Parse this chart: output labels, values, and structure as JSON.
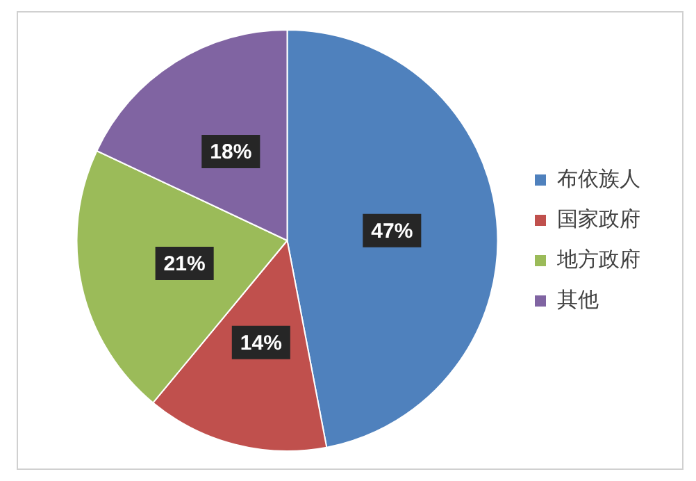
{
  "chart_data": {
    "type": "pie",
    "categories": [
      "布依族人",
      "国家政府",
      "地方政府",
      "其他"
    ],
    "values": [
      47,
      14,
      21,
      18
    ],
    "colors": [
      "#4f81bd",
      "#c0504d",
      "#9bbb59",
      "#8064a2"
    ],
    "value_labels": [
      "47%",
      "14%",
      "21%",
      "18%"
    ],
    "legend": "right"
  }
}
